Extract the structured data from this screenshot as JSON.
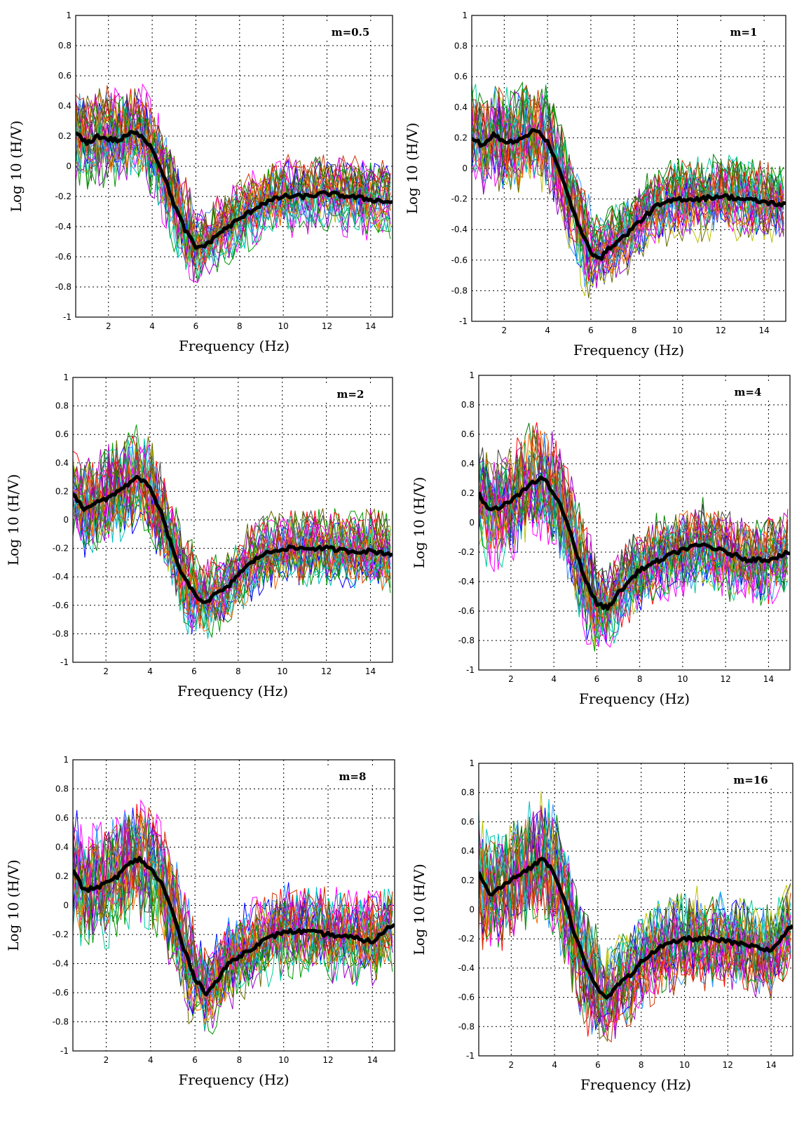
{
  "chart_data": [
    {
      "type": "line",
      "title": "",
      "annotation": "m=0.5",
      "xlabel": "Frequency (Hz)",
      "ylabel": "Log 10 (H/V)",
      "xlim": [
        0.5,
        15
      ],
      "ylim": [
        -1,
        1
      ],
      "xticks": [
        2,
        4,
        6,
        8,
        10,
        12,
        14
      ],
      "yticks": [
        -1,
        -0.8,
        -0.6,
        -0.4,
        -0.2,
        0,
        0.2,
        0.4,
        0.6,
        0.8,
        1
      ],
      "grid": true,
      "series": [
        {
          "color": "#000000",
          "role": "mean",
          "x": [
            0.5,
            1,
            1.5,
            2,
            2.5,
            3,
            3.5,
            4,
            4.5,
            5,
            5.5,
            6,
            6.5,
            7,
            7.5,
            8,
            9,
            10,
            11,
            12,
            13,
            14,
            15
          ],
          "y": [
            0.22,
            0.15,
            0.2,
            0.18,
            0.17,
            0.22,
            0.21,
            0.12,
            -0.05,
            -0.25,
            -0.42,
            -0.54,
            -0.52,
            -0.45,
            -0.4,
            -0.35,
            -0.25,
            -0.2,
            -0.2,
            -0.18,
            -0.2,
            -0.22,
            -0.24
          ]
        }
      ],
      "individual_curves": 30,
      "noise": 0.2
    },
    {
      "type": "line",
      "title": "",
      "annotation": "m=1",
      "xlabel": "Frequency (Hz)",
      "ylabel": "Log 10 (H/V)",
      "xlim": [
        0.5,
        15
      ],
      "ylim": [
        -1,
        1
      ],
      "xticks": [
        2,
        4,
        6,
        8,
        10,
        12,
        14
      ],
      "yticks": [
        -1,
        -0.8,
        -0.6,
        -0.4,
        -0.2,
        0,
        0.2,
        0.4,
        0.6,
        0.8,
        1
      ],
      "grid": true,
      "series": [
        {
          "color": "#000000",
          "role": "mean",
          "x": [
            0.5,
            1,
            1.5,
            2,
            2.5,
            3,
            3.5,
            4,
            4.5,
            5,
            5.5,
            6,
            6.5,
            7,
            7.5,
            8,
            9,
            10,
            11,
            12,
            13,
            14,
            15
          ],
          "y": [
            0.2,
            0.15,
            0.22,
            0.17,
            0.18,
            0.22,
            0.25,
            0.18,
            0.0,
            -0.2,
            -0.4,
            -0.55,
            -0.58,
            -0.5,
            -0.45,
            -0.38,
            -0.25,
            -0.2,
            -0.2,
            -0.18,
            -0.2,
            -0.22,
            -0.24
          ]
        }
      ],
      "individual_curves": 30,
      "noise": 0.22
    },
    {
      "type": "line",
      "title": "",
      "annotation": "m=2",
      "xlabel": "Frequency (Hz)",
      "ylabel": "Log 10 (H/V)",
      "xlim": [
        0.5,
        15
      ],
      "ylim": [
        -1,
        1
      ],
      "xticks": [
        2,
        4,
        6,
        8,
        10,
        12,
        14
      ],
      "yticks": [
        -1,
        -0.8,
        -0.6,
        -0.4,
        -0.2,
        0,
        0.2,
        0.4,
        0.6,
        0.8,
        1
      ],
      "grid": true,
      "series": [
        {
          "color": "#000000",
          "role": "mean",
          "x": [
            0.5,
            1,
            1.5,
            2,
            2.5,
            3,
            3.5,
            4,
            4.5,
            5,
            5.5,
            6,
            6.5,
            7,
            7.5,
            8,
            9,
            10,
            11,
            12,
            13,
            14,
            15
          ],
          "y": [
            0.18,
            0.08,
            0.12,
            0.14,
            0.2,
            0.25,
            0.3,
            0.22,
            0.05,
            -0.2,
            -0.4,
            -0.52,
            -0.58,
            -0.52,
            -0.48,
            -0.38,
            -0.25,
            -0.2,
            -0.2,
            -0.2,
            -0.22,
            -0.22,
            -0.24
          ]
        }
      ],
      "individual_curves": 30,
      "noise": 0.24
    },
    {
      "type": "line",
      "title": "",
      "annotation": "m=4",
      "xlabel": "Frequency (Hz)",
      "ylabel": "Log 10 (H/V)",
      "xlim": [
        0.5,
        15
      ],
      "ylim": [
        -1,
        1
      ],
      "xticks": [
        2,
        4,
        6,
        8,
        10,
        12,
        14
      ],
      "yticks": [
        -1,
        -0.8,
        -0.6,
        -0.4,
        -0.2,
        0,
        0.2,
        0.4,
        0.6,
        0.8,
        1
      ],
      "grid": true,
      "series": [
        {
          "color": "#000000",
          "role": "mean",
          "x": [
            0.5,
            1,
            1.5,
            2,
            2.5,
            3,
            3.5,
            4,
            4.5,
            5,
            5.5,
            6,
            6.5,
            7,
            7.5,
            8,
            9,
            10,
            11,
            12,
            13,
            14,
            15
          ],
          "y": [
            0.2,
            0.08,
            0.1,
            0.15,
            0.2,
            0.28,
            0.3,
            0.2,
            0.05,
            -0.18,
            -0.4,
            -0.55,
            -0.58,
            -0.48,
            -0.4,
            -0.32,
            -0.25,
            -0.18,
            -0.15,
            -0.2,
            -0.25,
            -0.25,
            -0.2
          ]
        }
      ],
      "individual_curves": 30,
      "noise": 0.26
    },
    {
      "type": "line",
      "title": "",
      "annotation": "m=8",
      "xlabel": "Frequency (Hz)",
      "ylabel": "Log 10 (H/V)",
      "xlim": [
        0.5,
        15
      ],
      "ylim": [
        -1,
        1
      ],
      "xticks": [
        2,
        4,
        6,
        8,
        10,
        12,
        14
      ],
      "yticks": [
        -1,
        -0.8,
        -0.6,
        -0.4,
        -0.2,
        0,
        0.2,
        0.4,
        0.6,
        0.8,
        1
      ],
      "grid": true,
      "series": [
        {
          "color": "#000000",
          "role": "mean",
          "x": [
            0.5,
            1,
            1.5,
            2,
            2.5,
            3,
            3.5,
            4,
            4.5,
            5,
            5.5,
            6,
            6.5,
            7,
            7.5,
            8,
            9,
            10,
            11,
            12,
            13,
            14,
            15
          ],
          "y": [
            0.25,
            0.1,
            0.12,
            0.15,
            0.2,
            0.28,
            0.32,
            0.25,
            0.15,
            -0.05,
            -0.3,
            -0.5,
            -0.6,
            -0.52,
            -0.4,
            -0.35,
            -0.25,
            -0.18,
            -0.18,
            -0.2,
            -0.22,
            -0.25,
            -0.12
          ]
        }
      ],
      "individual_curves": 30,
      "noise": 0.28
    },
    {
      "type": "line",
      "title": "",
      "annotation": "m=16",
      "xlabel": "Frequency (Hz)",
      "ylabel": "Log 10 (H/V)",
      "xlim": [
        0.5,
        15
      ],
      "ylim": [
        -1,
        1
      ],
      "xticks": [
        2,
        4,
        6,
        8,
        10,
        12,
        14
      ],
      "yticks": [
        -1,
        -0.8,
        -0.6,
        -0.4,
        -0.2,
        0,
        0.2,
        0.4,
        0.6,
        0.8,
        1
      ],
      "grid": true,
      "series": [
        {
          "color": "#000000",
          "role": "mean",
          "x": [
            0.5,
            1,
            1.5,
            2,
            2.5,
            3,
            3.5,
            4,
            4.5,
            5,
            5.5,
            6,
            6.5,
            7,
            7.5,
            8,
            9,
            10,
            11,
            12,
            13,
            14,
            15
          ],
          "y": [
            0.25,
            0.1,
            0.15,
            0.2,
            0.25,
            0.3,
            0.35,
            0.25,
            0.05,
            -0.2,
            -0.4,
            -0.55,
            -0.6,
            -0.5,
            -0.45,
            -0.35,
            -0.25,
            -0.2,
            -0.2,
            -0.22,
            -0.25,
            -0.28,
            -0.1
          ]
        }
      ],
      "individual_curves": 30,
      "noise": 0.3
    }
  ],
  "palette": [
    "#0000ff",
    "#008000",
    "#ff0000",
    "#00bfbf",
    "#bf00bf",
    "#bfbf00",
    "#404040",
    "#ff00ff",
    "#3399ff",
    "#009900",
    "#cc3300",
    "#9900cc",
    "#00cc99",
    "#666600",
    "#ff6600"
  ]
}
